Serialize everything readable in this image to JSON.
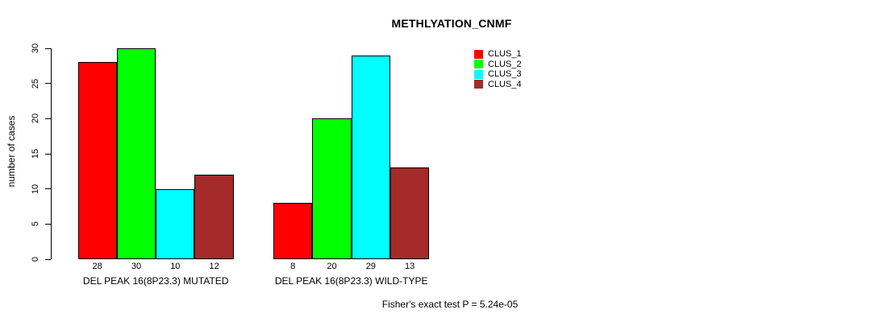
{
  "title": "METHLYATION_CNMF",
  "footer_annotation": "Fisher's exact test P = 5.24e-05",
  "colors": {
    "clus_1": "#FF0000",
    "clus_2": "#00FF00",
    "clus_3": "#00FFFF",
    "clus_4": "#A52A2A",
    "axis": "#000000",
    "background": "#FFFFFF"
  },
  "chart_data": {
    "type": "bar",
    "title": "METHLYATION_CNMF",
    "xlabel": "",
    "ylabel": "number of cases",
    "ylim": [
      0,
      30
    ],
    "yticks": [
      0,
      5,
      10,
      15,
      20,
      25,
      30
    ],
    "grid": false,
    "legend_position": "right",
    "categories": [
      "DEL PEAK 16(8P23.3) MUTATED",
      "DEL PEAK 16(8P23.3) WILD-TYPE"
    ],
    "series": [
      {
        "name": "CLUS_1",
        "color": "#FF0000",
        "values": [
          28,
          8
        ]
      },
      {
        "name": "CLUS_2",
        "color": "#00FF00",
        "values": [
          30,
          20
        ]
      },
      {
        "name": "CLUS_3",
        "color": "#00FFFF",
        "values": [
          10,
          29
        ]
      },
      {
        "name": "CLUS_4",
        "color": "#A52A2A",
        "values": [
          12,
          13
        ]
      }
    ],
    "groups": [
      {
        "label": "DEL PEAK 16(8P23.3) MUTATED",
        "values": [
          28,
          30,
          10,
          12
        ]
      },
      {
        "label": "DEL PEAK 16(8P23.3) WILD-TYPE",
        "values": [
          8,
          20,
          29,
          13
        ]
      }
    ],
    "bar_value_labels": [
      [
        "28",
        "30",
        "10",
        "12"
      ],
      [
        "8",
        "20",
        "29",
        "13"
      ]
    ],
    "annotation": "Fisher's exact test P = 5.24e-05"
  }
}
